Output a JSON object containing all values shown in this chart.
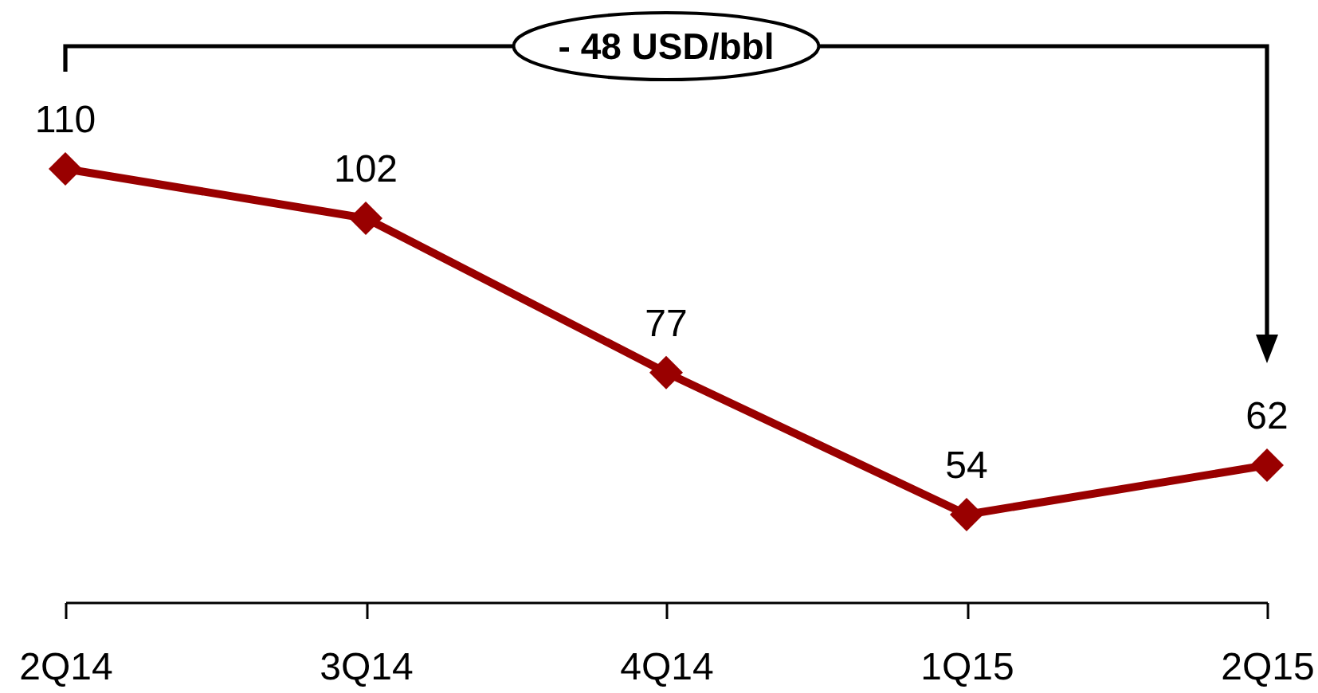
{
  "chart_data": {
    "type": "line",
    "categories": [
      "2Q14",
      "3Q14",
      "4Q14",
      "1Q15",
      "2Q15"
    ],
    "values": [
      110,
      102,
      77,
      54,
      62
    ],
    "color": "#990000",
    "marker": "diamond",
    "data_labels": true,
    "tick_labels": "x",
    "annotations": [
      "- 48 USD/bbl"
    ]
  }
}
